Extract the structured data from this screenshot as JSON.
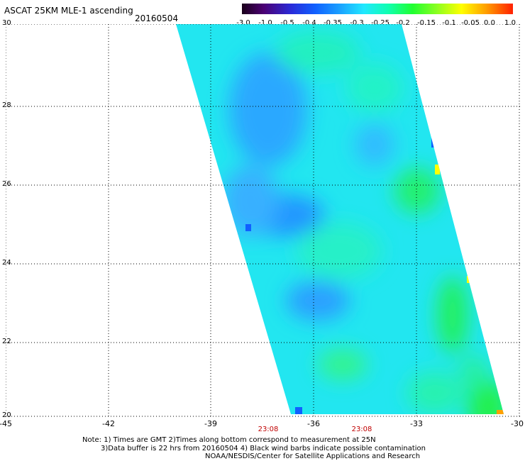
{
  "title": "ASCAT 25KM MLE-1 ascending",
  "date": "20160504",
  "colorbar": {
    "labels": [
      "-3.0",
      "-1.0",
      "-0.5",
      "-0.4",
      "-0.35",
      "-0.3",
      "-0.25",
      "-0.2",
      "-0.15",
      "-0.1",
      "-0.05",
      "0.0",
      "1.0"
    ]
  },
  "axes": {
    "x_ticks": [
      "-45",
      "-42",
      "-39",
      "-36",
      "-33",
      "-30"
    ],
    "y_ticks": [
      "30",
      "28",
      "26",
      "24",
      "22",
      "20"
    ]
  },
  "times": [
    "23:08",
    "23:08"
  ],
  "notes": {
    "line1": "Note: 1) Times are GMT 2)Times along bottom correspond to measurement at 25N",
    "line2": "3)Data buffer is 22 hrs from 20160504 4) Black wind barbs indicate possible contamination",
    "line3": "NOAA/NESDIS/Center for Satellite Applications and Research"
  },
  "colors": {
    "swath_base": "#22e6f0",
    "blue_patch": "#2aa8ff",
    "green_patch": "#22ff40",
    "grid": "#000000",
    "time_label": "#c00000"
  }
}
